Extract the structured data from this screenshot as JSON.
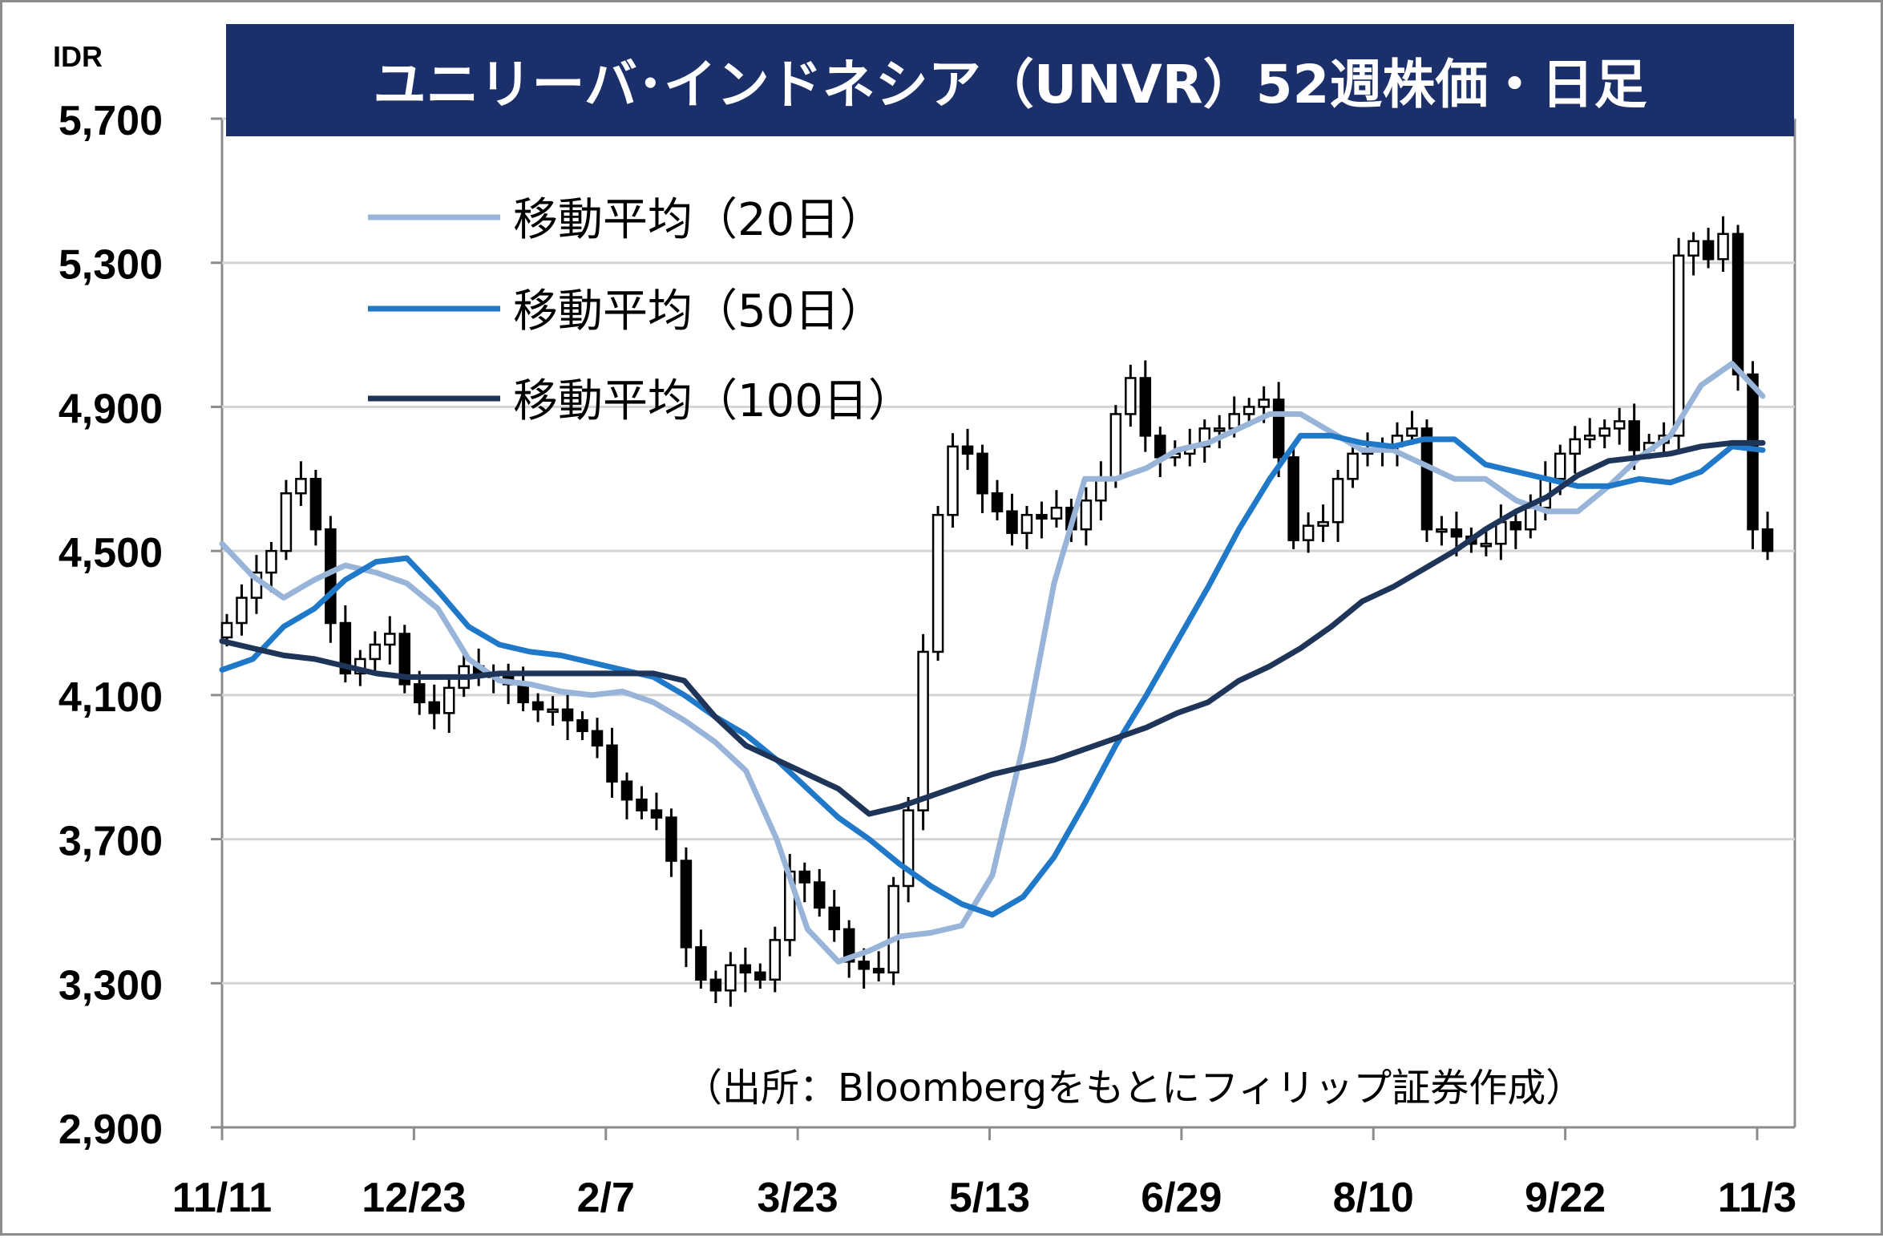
{
  "chart_data": {
    "type": "line",
    "title": "ユニリーバ･インドネシア（UNVR）52週株価・日足",
    "ylabel": "IDR",
    "xlabel": "",
    "ylim": [
      2900,
      5700
    ],
    "yticks": [
      2900,
      3300,
      3700,
      4100,
      4500,
      4900,
      5300,
      5700
    ],
    "ytick_labels": [
      "2,900",
      "3,300",
      "3,700",
      "4,100",
      "4,500",
      "4,900",
      "5,300",
      "5,700"
    ],
    "xtick_labels": [
      "11/11",
      "12/23",
      "2/7",
      "3/23",
      "5/13",
      "6/29",
      "8/10",
      "9/22",
      "11/3"
    ],
    "grid": true,
    "legend_position": "top-left",
    "source_note": "（出所：Bloombergをもとにフィリップ証券作成）",
    "colors": {
      "title_bg": "#1b2f6b",
      "ma20": "#98b4d8",
      "ma50": "#1f78c8",
      "ma100": "#1e3559",
      "candle": "#000000",
      "grid": "#d4d4d4"
    },
    "series": [
      {
        "name": "移動平均（20日）",
        "key": "ma20",
        "values": [
          4520,
          4430,
          4370,
          4420,
          4460,
          4440,
          4410,
          4340,
          4200,
          4140,
          4130,
          4110,
          4100,
          4110,
          4080,
          4030,
          3970,
          3890,
          3700,
          3450,
          3360,
          3390,
          3430,
          3440,
          3460,
          3600,
          3960,
          4410,
          4700,
          4700,
          4730,
          4780,
          4800,
          4840,
          4880,
          4880,
          4830,
          4780,
          4780,
          4740,
          4700,
          4700,
          4640,
          4610,
          4610,
          4680,
          4760,
          4820,
          4960,
          5020,
          4930
        ]
      },
      {
        "name": "移動平均（50日）",
        "key": "ma50",
        "values": [
          4170,
          4200,
          4290,
          4340,
          4420,
          4470,
          4480,
          4390,
          4290,
          4240,
          4220,
          4210,
          4190,
          4170,
          4150,
          4100,
          4040,
          3990,
          3920,
          3840,
          3760,
          3700,
          3630,
          3570,
          3520,
          3490,
          3540,
          3650,
          3800,
          3960,
          4100,
          4250,
          4400,
          4560,
          4700,
          4820,
          4820,
          4800,
          4790,
          4810,
          4810,
          4740,
          4720,
          4700,
          4680,
          4680,
          4700,
          4690,
          4720,
          4790,
          4780
        ]
      },
      {
        "name": "移動平均（100日）",
        "key": "ma100",
        "values": [
          4250,
          4230,
          4210,
          4200,
          4180,
          4160,
          4150,
          4150,
          4150,
          4160,
          4160,
          4160,
          4160,
          4160,
          4160,
          4140,
          4040,
          3960,
          3920,
          3880,
          3840,
          3770,
          3790,
          3820,
          3850,
          3880,
          3900,
          3920,
          3950,
          3980,
          4010,
          4050,
          4080,
          4140,
          4180,
          4230,
          4290,
          4360,
          4400,
          4450,
          4500,
          4560,
          4610,
          4650,
          4710,
          4750,
          4760,
          4770,
          4790,
          4800,
          4800
        ]
      }
    ],
    "price_close": [
      4300,
      4370,
      4440,
      4500,
      4660,
      4700,
      4560,
      4300,
      4160,
      4200,
      4240,
      4270,
      4130,
      4080,
      4050,
      4120,
      4180,
      4160,
      4150,
      4130,
      4080,
      4060,
      4060,
      4030,
      4000,
      3960,
      3860,
      3810,
      3780,
      3760,
      3640,
      3400,
      3310,
      3280,
      3350,
      3330,
      3310,
      3420,
      3610,
      3580,
      3510,
      3450,
      3360,
      3340,
      3330,
      3570,
      3780,
      4220,
      4600,
      4790,
      4770,
      4660,
      4610,
      4550,
      4600,
      4590,
      4620,
      4560,
      4640,
      4700,
      4880,
      4980,
      4820,
      4760,
      4770,
      4790,
      4840,
      4840,
      4880,
      4900,
      4920,
      4760,
      4530,
      4570,
      4580,
      4700,
      4770,
      4780,
      4790,
      4820,
      4840,
      4560,
      4560,
      4540,
      4520,
      4520,
      4580,
      4560,
      4620,
      4700,
      4770,
      4810,
      4820,
      4840,
      4860,
      4780,
      4800,
      4820,
      5320,
      5360,
      5310,
      5380,
      4990,
      4560,
      4500
    ],
    "x_dates": {
      "start": "11/11",
      "end": "11/3"
    }
  }
}
